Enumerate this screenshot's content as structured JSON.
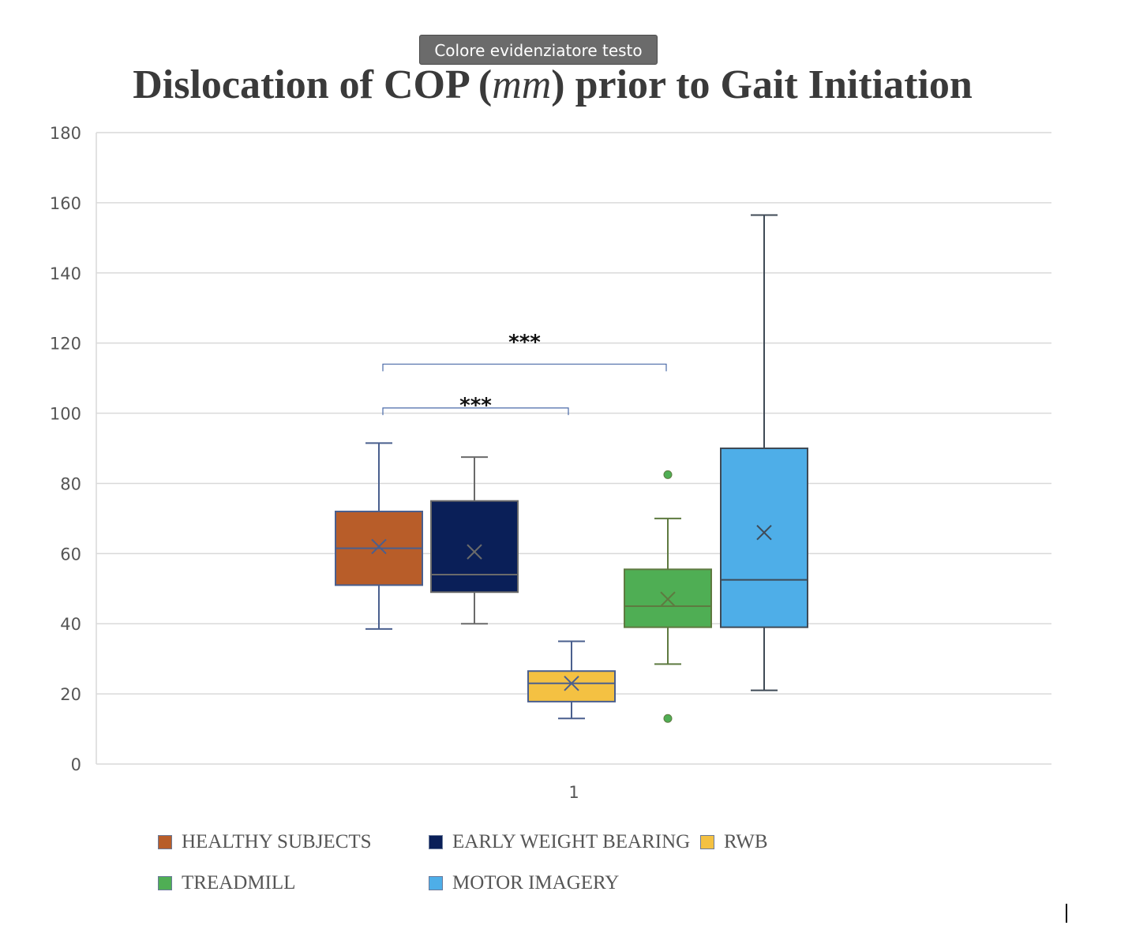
{
  "tooltip": {
    "text": "Colore evidenziatore testo"
  },
  "title": {
    "before": "Dislocation of COP (",
    "italic": "mm",
    "after": ") prior to Gait Initiation"
  },
  "chart_data": {
    "type": "box",
    "title": "Dislocation of COP (mm) prior to Gait Initiation",
    "xlabel": "",
    "ylabel": "",
    "ylim": [
      0,
      180
    ],
    "yticks": [
      0,
      20,
      40,
      60,
      80,
      100,
      120,
      140,
      160,
      180
    ],
    "categories": [
      "1"
    ],
    "grid": true,
    "legend_position": "bottom",
    "series": [
      {
        "name": "HEALTHY SUBJECTS",
        "color": "#b85d29",
        "stroke": "#4a5f8e",
        "min": 38.5,
        "q1": 51,
        "median": 61.5,
        "q3": 72,
        "max": 91.5,
        "mean": 62,
        "outliers": []
      },
      {
        "name": "EARLY WEIGHT BEARING",
        "color": "#0a1f58",
        "stroke": "#6a6a6a",
        "min": 40,
        "q1": 49,
        "median": 54,
        "q3": 75,
        "max": 87.5,
        "mean": 60.5,
        "outliers": []
      },
      {
        "name": "RWB",
        "color": "#f4c142",
        "stroke": "#4a5f8e",
        "min": 13,
        "q1": 17.8,
        "median": 23,
        "q3": 26.5,
        "max": 35,
        "mean": 23,
        "outliers": []
      },
      {
        "name": "TREADMILL",
        "color": "#4fae54",
        "stroke": "#5e7a40",
        "min": 28.5,
        "q1": 39,
        "median": 45,
        "q3": 55.5,
        "max": 70,
        "mean": 47,
        "outliers": [
          82.5,
          13
        ]
      },
      {
        "name": "MOTOR IMAGERY",
        "color": "#4eaee8",
        "stroke": "#3f4a56",
        "min": 21,
        "q1": 39,
        "median": 52.5,
        "q3": 90,
        "max": 156.5,
        "mean": 66,
        "outliers": []
      }
    ],
    "annotations": [
      {
        "text": "***",
        "from_series": 0,
        "to_series": 3,
        "bracket_y": 114,
        "text_y": 122
      },
      {
        "text": "***",
        "from_series": 0,
        "to_series": 2,
        "bracket_y": 101.5,
        "text_y": 104
      }
    ]
  }
}
